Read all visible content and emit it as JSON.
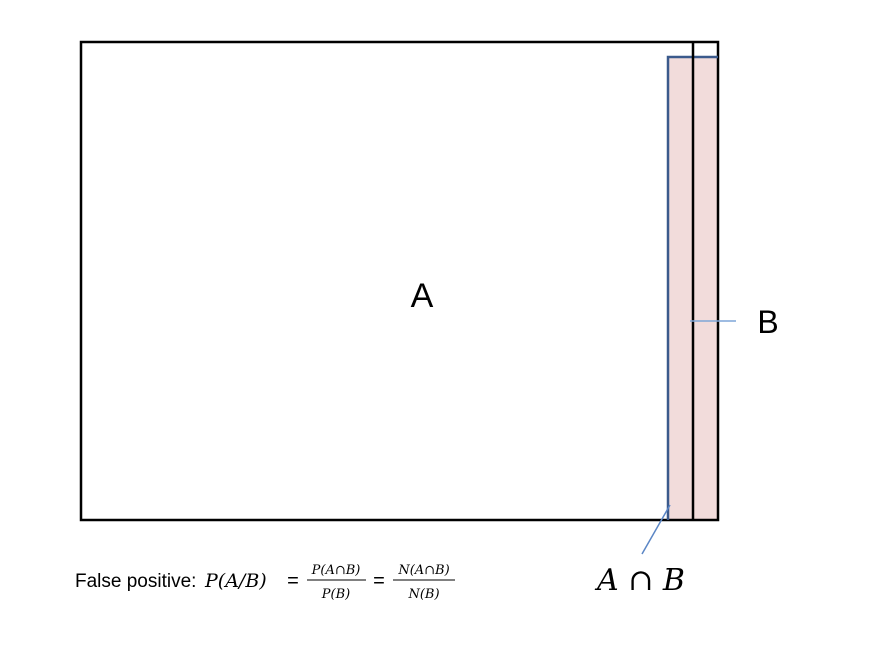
{
  "diagram": {
    "label_a": "A",
    "label_b": "B",
    "label_intersection": "A ∩ B"
  },
  "formula": {
    "prefix": "False positive: ",
    "lhs": "P(A/B)",
    "eq1": "=",
    "frac1_num": "P(A∩B)",
    "frac1_den": "P(B)",
    "eq2": "=",
    "frac2_num": "N(A∩B)",
    "frac2_den": "N(B)"
  },
  "colors": {
    "outline": "#000000",
    "b_outline": "#3b5a8c",
    "b_fill": "#f2dcdb",
    "leader": "#5b86c5"
  }
}
